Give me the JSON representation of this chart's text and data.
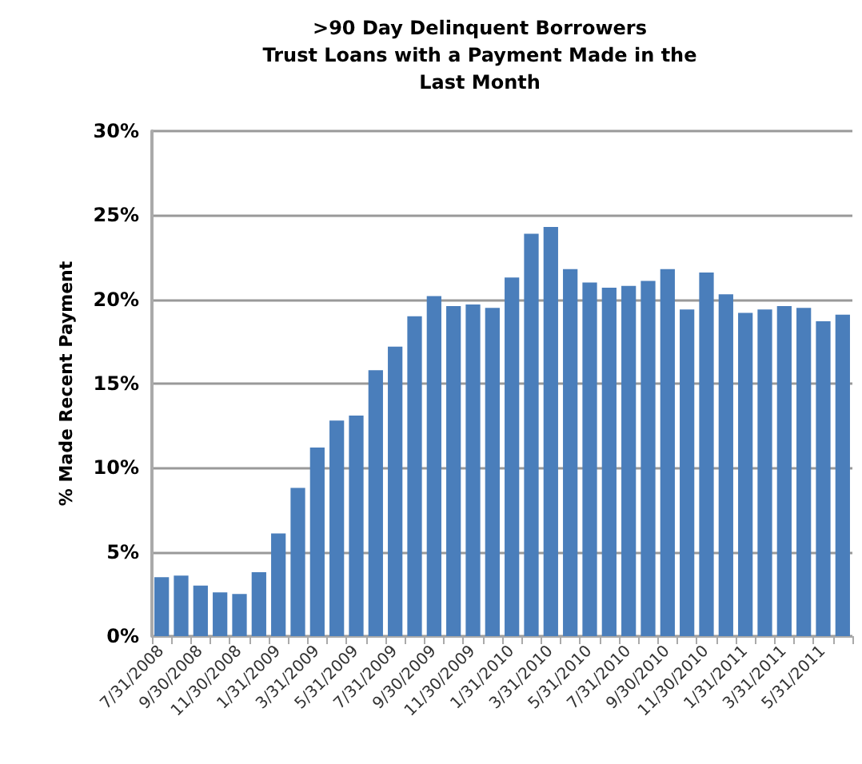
{
  "chart_data": {
    "type": "bar",
    "title": ">90 Day Delinquent Borrowers\nTrust Loans with a Payment Made in the\nLast Month",
    "ylabel": "% Made Recent Payment",
    "categories": [
      "7/31/2008",
      null,
      "9/30/2008",
      null,
      "11/30/2008",
      null,
      "1/31/2009",
      null,
      "3/31/2009",
      null,
      "5/31/2009",
      null,
      "7/31/2009",
      null,
      "9/30/2009",
      null,
      "11/30/2009",
      null,
      "1/31/2010",
      null,
      "3/31/2010",
      null,
      "5/31/2010",
      null,
      "7/31/2010",
      null,
      "9/30/2010",
      null,
      "11/30/2010",
      null,
      "1/31/2011",
      null,
      "3/31/2011",
      null,
      "5/31/2011",
      null
    ],
    "values": [
      3.5,
      3.6,
      3.0,
      2.6,
      2.5,
      3.8,
      6.1,
      8.8,
      11.2,
      12.8,
      13.1,
      15.8,
      17.2,
      19.0,
      20.2,
      19.6,
      19.7,
      19.5,
      21.3,
      23.9,
      24.3,
      21.8,
      21.0,
      20.7,
      20.8,
      21.1,
      21.8,
      19.4,
      21.6,
      20.3,
      19.2,
      19.4,
      19.6,
      19.5,
      18.7,
      19.1
    ],
    "color": "#4a7ebb",
    "ylim": [
      0,
      30
    ],
    "yticks": [
      {
        "value": 0,
        "label": "0%"
      },
      {
        "value": 5,
        "label": "5%"
      },
      {
        "value": 10,
        "label": "10%"
      },
      {
        "value": 15,
        "label": "15%"
      },
      {
        "value": 20,
        "label": "20%"
      },
      {
        "value": 25,
        "label": "25%"
      },
      {
        "value": 30,
        "label": "30%"
      }
    ],
    "grid": "y"
  }
}
